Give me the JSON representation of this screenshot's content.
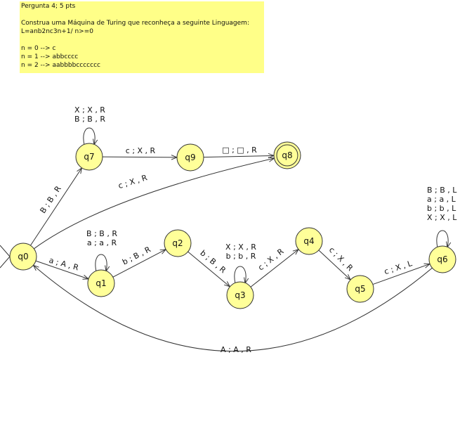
{
  "note": {
    "background": "#ffff88",
    "lines": [
      "Pergunta 4; 5 pts",
      "",
      "Construa uma Máquina de Turing que reconheça a seguinte Linguagem:",
      "L=anb2nc3n+1/ n>=0",
      "",
      "n = 0 --> c",
      "n = 1 --> abbcccc",
      "n = 2 --> aabbbbccccccc"
    ]
  },
  "states": [
    {
      "id": "q0",
      "label": "q0",
      "final": false,
      "initial": true
    },
    {
      "id": "q1",
      "label": "q1",
      "final": false
    },
    {
      "id": "q2",
      "label": "q2",
      "final": false
    },
    {
      "id": "q3",
      "label": "q3",
      "final": false
    },
    {
      "id": "q4",
      "label": "q4",
      "final": false
    },
    {
      "id": "q5",
      "label": "q5",
      "final": false
    },
    {
      "id": "q6",
      "label": "q6",
      "final": false
    },
    {
      "id": "q7",
      "label": "q7",
      "final": false
    },
    {
      "id": "q8",
      "label": "q8",
      "final": true
    },
    {
      "id": "q9",
      "label": "q9",
      "final": false
    }
  ],
  "transitions": [
    {
      "from": "q0",
      "to": "q7",
      "labels": [
        "B ; B , R"
      ]
    },
    {
      "from": "q0",
      "to": "q8",
      "labels": [
        "c ; X , R"
      ]
    },
    {
      "from": "q0",
      "to": "q1",
      "labels": [
        "a ; A , R"
      ]
    },
    {
      "from": "q7",
      "to": "q7",
      "labels": [
        "X ; X , R",
        "B ; B , R"
      ]
    },
    {
      "from": "q7",
      "to": "q9",
      "labels": [
        "c ; X , R"
      ]
    },
    {
      "from": "q9",
      "to": "q8",
      "labels": [
        "□ ; □ , R"
      ]
    },
    {
      "from": "q1",
      "to": "q1",
      "labels": [
        "B ; B , R",
        "a ; a , R"
      ]
    },
    {
      "from": "q1",
      "to": "q2",
      "labels": [
        "b ; B , R"
      ]
    },
    {
      "from": "q2",
      "to": "q3",
      "labels": [
        "b ; B , R"
      ]
    },
    {
      "from": "q3",
      "to": "q3",
      "labels": [
        "X ; X , R",
        "b ; b , R"
      ]
    },
    {
      "from": "q3",
      "to": "q4",
      "labels": [
        "c ; X , R"
      ]
    },
    {
      "from": "q4",
      "to": "q5",
      "labels": [
        "c ; X , R"
      ]
    },
    {
      "from": "q5",
      "to": "q6",
      "labels": [
        "c ; X , L"
      ]
    },
    {
      "from": "q6",
      "to": "q6",
      "labels": [
        "B ; B , L",
        "a ; a , L",
        "b ; b , L",
        "X ; X , L"
      ]
    },
    {
      "from": "q6",
      "to": "q0",
      "labels": [
        "A ; A , R"
      ]
    }
  ]
}
